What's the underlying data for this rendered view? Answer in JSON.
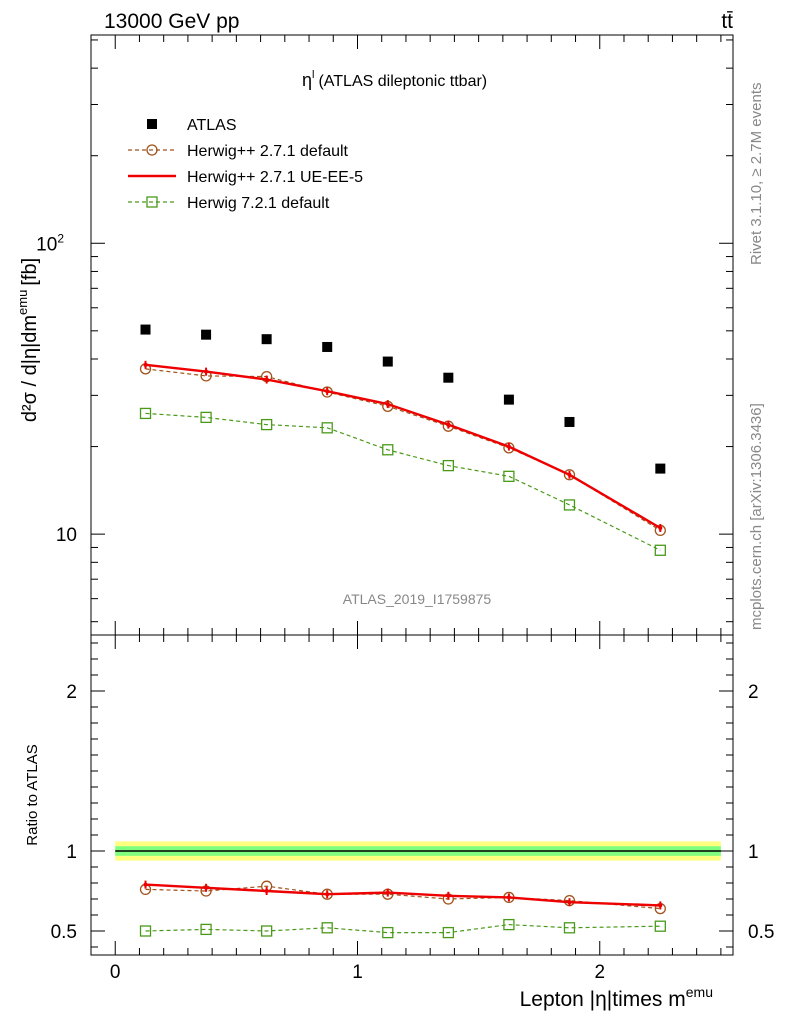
{
  "header": {
    "left": "13000 GeV pp",
    "right": "tt̄"
  },
  "side": {
    "rivet": "Rivet 3.1.10, ≥ 2.7M events",
    "mcplots": "mcplots.cern.ch [arXiv:1306.3436]"
  },
  "chart_data": {
    "type": "scatter",
    "title": "η",
    "title_sup": "l",
    "title_rest": "(ATLAS dileptonic ttbar)",
    "watermark": "ATLAS_2019_I1759875",
    "xlabel": "Lepton |η|times m",
    "xlabel_sup": "emu",
    "ylabel": "d²σ / d|η|dm",
    "ylabel_sup": "emu",
    "ylabel_unit": "[fb]",
    "ratio_ylabel": "Ratio to ATLAS",
    "x": [
      0.125,
      0.375,
      0.625,
      0.875,
      1.125,
      1.375,
      1.625,
      1.875,
      2.25
    ],
    "xlim": [
      -0.1,
      2.55
    ],
    "ylim": [
      4.5,
      520
    ],
    "yscale": "log",
    "ratio_ylim": [
      0.35,
      2.35
    ],
    "x_ticks": [
      0,
      1,
      2
    ],
    "y_ticks": [
      {
        "value": 10,
        "label": "10"
      },
      {
        "value": 100,
        "label": "10",
        "sup": "2"
      }
    ],
    "ratio_ticks": [
      {
        "value": 0.5,
        "label": "0.5"
      },
      {
        "value": 1,
        "label": "1"
      },
      {
        "value": 2,
        "label": "2"
      }
    ],
    "series": [
      {
        "name": "ATLAS",
        "style": "data",
        "color": "#000000",
        "values": [
          50.5,
          48.5,
          46.8,
          44.0,
          39.2,
          34.5,
          29.0,
          24.3,
          16.8
        ]
      },
      {
        "name": "Herwig++ 2.7.1 default",
        "style": "dashed-circle",
        "color": "#a0521a",
        "values": [
          37.0,
          35.0,
          34.8,
          30.8,
          27.5,
          23.5,
          19.8,
          16.0,
          10.3
        ],
        "ratio": [
          0.76,
          0.75,
          0.78,
          0.73,
          0.73,
          0.7,
          0.71,
          0.69,
          0.64
        ]
      },
      {
        "name": "Herwig++ 2.7.1 UE-EE-5",
        "style": "solid",
        "color": "#ee0000",
        "values": [
          38.2,
          36.2,
          34.0,
          31.0,
          28.0,
          23.8,
          20.0,
          16.0,
          10.5
        ],
        "ratio": [
          0.79,
          0.77,
          0.75,
          0.73,
          0.74,
          0.72,
          0.71,
          0.68,
          0.66
        ]
      },
      {
        "name": "Herwig 7.2.1 default",
        "style": "dashed-square",
        "color": "#4a9a1a",
        "values": [
          26.0,
          25.2,
          23.8,
          23.2,
          19.5,
          17.2,
          15.8,
          12.6,
          8.8
        ],
        "ratio": [
          0.5,
          0.51,
          0.5,
          0.52,
          0.49,
          0.49,
          0.54,
          0.52,
          0.53
        ]
      }
    ],
    "ratio_band": {
      "inner": [
        0.97,
        1.03
      ],
      "outer": [
        0.94,
        1.06
      ],
      "inner_color": "#7fff7f",
      "outer_color": "#ffff7f"
    }
  }
}
